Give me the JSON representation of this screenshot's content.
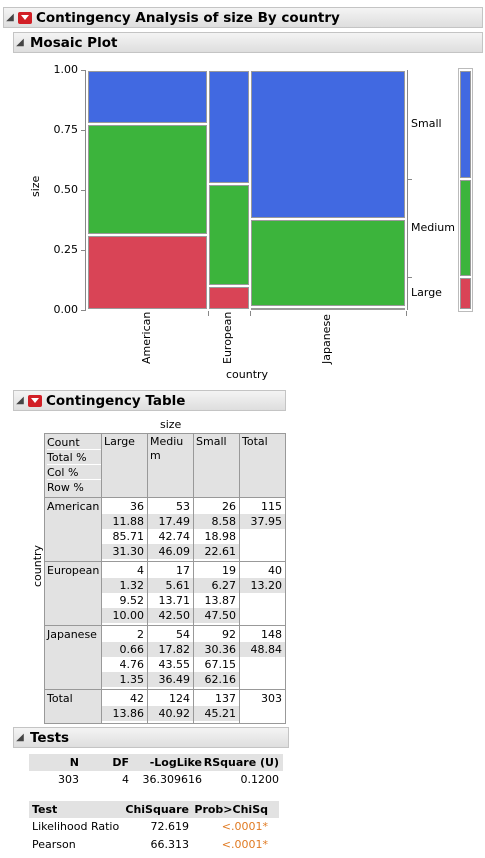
{
  "report": {
    "title": "Contingency Analysis of size By country"
  },
  "mosaic": {
    "title": "Mosaic Plot",
    "ylabel": "size",
    "xlabel": "country",
    "yticks": [
      "1.00",
      "0.75",
      "0.50",
      "0.25",
      "0.00"
    ],
    "countries": [
      "American",
      "European",
      "Japanese"
    ],
    "levels": [
      "Small",
      "Medium",
      "Large"
    ]
  },
  "chart_data": {
    "type": "mosaic",
    "x": [
      "American",
      "European",
      "Japanese"
    ],
    "x_widths": [
      0.3795,
      0.132,
      0.4884
    ],
    "series": [
      {
        "name": "Large",
        "values": [
          0.313,
          0.1,
          0.0135
        ]
      },
      {
        "name": "Medium",
        "values": [
          0.4609,
          0.425,
          0.3649
        ]
      },
      {
        "name": "Small",
        "values": [
          0.2261,
          0.475,
          0.6216
        ]
      }
    ],
    "ylim": [
      0,
      1
    ],
    "xlabel": "country",
    "ylabel": "size",
    "colors": {
      "Small": "#4169e1",
      "Medium": "#3cb43c",
      "Large": "#d94456"
    },
    "marginal": [
      0.1386,
      0.4092,
      0.4521
    ]
  },
  "contingency": {
    "title": "Contingency Table",
    "col_var": "size",
    "row_var": "country",
    "legend": [
      "Count",
      "Total %",
      "Col %",
      "Row %"
    ],
    "columns": [
      "Large",
      "Medium",
      "Small",
      "Total"
    ],
    "col_headers": [
      "Large",
      "Mediu\nm",
      "Small",
      "Total"
    ],
    "rows": [
      {
        "label": "American",
        "cells": [
          [
            "36",
            "11.88",
            "85.71",
            "31.30"
          ],
          [
            "53",
            "17.49",
            "42.74",
            "46.09"
          ],
          [
            "26",
            "8.58",
            "18.98",
            "22.61"
          ],
          [
            "115",
            "37.95"
          ]
        ]
      },
      {
        "label": "European",
        "cells": [
          [
            "4",
            "1.32",
            "9.52",
            "10.00"
          ],
          [
            "17",
            "5.61",
            "13.71",
            "42.50"
          ],
          [
            "19",
            "6.27",
            "13.87",
            "47.50"
          ],
          [
            "40",
            "13.20"
          ]
        ]
      },
      {
        "label": "Japanese",
        "cells": [
          [
            "2",
            "0.66",
            "4.76",
            "1.35"
          ],
          [
            "54",
            "17.82",
            "43.55",
            "36.49"
          ],
          [
            "92",
            "30.36",
            "67.15",
            "62.16"
          ],
          [
            "148",
            "48.84"
          ]
        ]
      },
      {
        "label": "Total",
        "cells": [
          [
            "42",
            "13.86"
          ],
          [
            "124",
            "40.92"
          ],
          [
            "137",
            "45.21"
          ],
          [
            "303"
          ]
        ]
      }
    ]
  },
  "tests": {
    "title": "Tests",
    "summary_headers": [
      "N",
      "DF",
      "-LogLike",
      "RSquare (U)"
    ],
    "summary_values": [
      "303",
      "4",
      "36.309616",
      "0.1200"
    ],
    "test_headers": [
      "Test",
      "ChiSquare",
      "Prob>ChiSq"
    ],
    "test_rows": [
      [
        "Likelihood Ratio",
        "72.619",
        "<.0001*"
      ],
      [
        "Pearson",
        "66.313",
        "<.0001*"
      ]
    ]
  }
}
